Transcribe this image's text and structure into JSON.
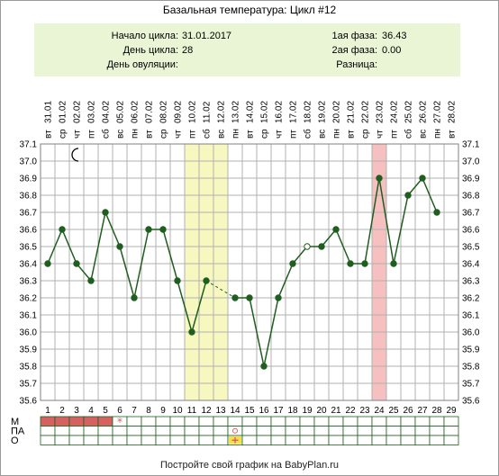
{
  "title": "Базальная температура: Цикл #12",
  "info": {
    "cycle_start_label": "Начало цикла:",
    "cycle_start_value": "31.01.2017",
    "cycle_day_label": "День цикла:",
    "cycle_day_value": "28",
    "ovulation_day_label": "День овуляции:",
    "ovulation_day_value": "",
    "phase1_label": "1ая фаза:",
    "phase1_value": "36.43",
    "phase2_label": "2ая фаза:",
    "phase2_value": "0.00",
    "difference_label": "Разница:",
    "difference_value": ""
  },
  "footer": "Постройте свой график на BabyPlan.ru",
  "colors": {
    "line": "#1f5e1f",
    "dot": "#1f5e1f",
    "grid": "#b0b0b0",
    "highlight_yellow": "#f7f7c0",
    "highlight_pink": "#f7c0c0",
    "menses": "#d86060",
    "info_bg": "#eaf5d6"
  },
  "chart_data": {
    "type": "line",
    "ylim": [
      35.6,
      37.1
    ],
    "y_ticks": [
      "37.1",
      "37.0",
      "36.9",
      "36.8",
      "36.7",
      "36.6",
      "36.5",
      "36.4",
      "36.3",
      "36.2",
      "36.1",
      "36.0",
      "35.9",
      "35.8",
      "35.7",
      "35.6"
    ],
    "days": [
      "1",
      "2",
      "3",
      "4",
      "5",
      "6",
      "7",
      "8",
      "9",
      "10",
      "11",
      "12",
      "13",
      "14",
      "15",
      "16",
      "17",
      "18",
      "19",
      "20",
      "21",
      "22",
      "23",
      "24",
      "25",
      "26",
      "27",
      "28",
      "29"
    ],
    "weekdays": [
      "вт",
      "ср",
      "чт",
      "пт",
      "сб",
      "вс",
      "пн",
      "вт",
      "ср",
      "чт",
      "пт",
      "сб",
      "вс",
      "пн",
      "вт",
      "ср",
      "чт",
      "пт",
      "сб",
      "вс",
      "пн",
      "вт",
      "ср",
      "чт",
      "пт",
      "сб",
      "вс",
      "пн",
      "вт"
    ],
    "dates": [
      "31.01",
      "01.02",
      "02.02",
      "03.02",
      "04.02",
      "05.02",
      "06.02",
      "07.02",
      "08.02",
      "09.02",
      "10.02",
      "11.02",
      "12.02",
      "13.02",
      "14.02",
      "15.02",
      "16.02",
      "17.02",
      "18.02",
      "19.02",
      "20.02",
      "21.02",
      "22.02",
      "23.02",
      "24.02",
      "25.02",
      "26.02",
      "27.02",
      "28.02"
    ],
    "series": [
      {
        "values": [
          36.4,
          36.6,
          36.4,
          36.3,
          36.7,
          36.5,
          36.2,
          36.6,
          36.6,
          36.3,
          36.0,
          36.3,
          null,
          36.2,
          36.2,
          35.8,
          36.2,
          36.4,
          36.5,
          36.5,
          36.6,
          36.4,
          36.4,
          36.9,
          36.4,
          36.8,
          36.9,
          36.7,
          null
        ]
      }
    ],
    "open_points": [
      19
    ],
    "dashed_segment": [
      12,
      14
    ],
    "highlight_days_yellow": [
      11,
      12,
      13
    ],
    "highlight_days_pink": [
      24
    ],
    "moon_icon_day": 3,
    "rows": [
      {
        "label": "М",
        "filled_days": [
          1,
          2,
          3,
          4,
          5
        ],
        "star_day": 6
      },
      {
        "label": "ПА",
        "circle_day": 14
      },
      {
        "label": "О",
        "plus_day": 14
      }
    ]
  }
}
